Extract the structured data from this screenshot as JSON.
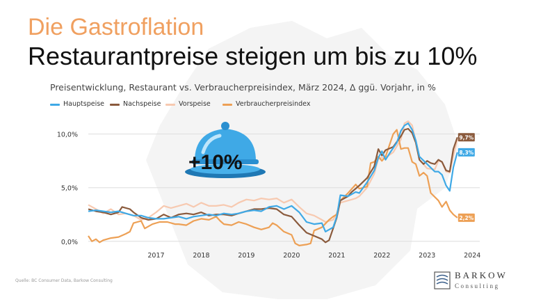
{
  "header": {
    "kicker": "Die Gastroflation",
    "headline": "Restaurantpreise steigen um bis zu 10%"
  },
  "colors": {
    "hauptspeise": "#3fa9e6",
    "nachspeise": "#8a5a3c",
    "vorspeise": "#f7c9b0",
    "vpi": "#eda055",
    "kicker": "#f0a060"
  },
  "badge": {
    "text": "+10%",
    "icon": "cloche-icon"
  },
  "source": "Quelle: BC Consumer Data, Barkow Consulting",
  "logo": {
    "name": "BARKOW",
    "sub": "Consulting"
  },
  "chart_data": {
    "type": "line",
    "title": "Preisentwicklung, Restaurant vs. Verbraucherpreisindex, März 2024, Δ ggü. Vorjahr, in %",
    "xlabel": "",
    "ylabel": "",
    "x_ticks": [
      "2017",
      "2018",
      "2019",
      "2020",
      "2021",
      "2022",
      "2023",
      "2024"
    ],
    "y_ticks": [
      "0,0%",
      "5,0%",
      "10,0%"
    ],
    "ylim": [
      -0.6,
      11.6
    ],
    "xlim": [
      2016.0,
      2024.25
    ],
    "grid": "horizontal",
    "legend_position": "top-left",
    "series": [
      {
        "name": "Hauptspeise",
        "color": "#3fa9e6",
        "end_label": "8,3%",
        "points": [
          [
            2016.0,
            2.8
          ],
          [
            2016.17,
            2.9
          ],
          [
            2016.33,
            2.8
          ],
          [
            2016.5,
            2.7
          ],
          [
            2016.67,
            2.8
          ],
          [
            2016.83,
            2.6
          ],
          [
            2017.0,
            2.4
          ],
          [
            2017.17,
            2.4
          ],
          [
            2017.33,
            2.2
          ],
          [
            2017.5,
            2.1
          ],
          [
            2017.67,
            2.1
          ],
          [
            2017.83,
            2.2
          ],
          [
            2018.0,
            2.3
          ],
          [
            2018.17,
            2.1
          ],
          [
            2018.33,
            2.3
          ],
          [
            2018.5,
            2.4
          ],
          [
            2018.67,
            2.5
          ],
          [
            2018.83,
            2.4
          ],
          [
            2019.0,
            2.6
          ],
          [
            2019.17,
            2.5
          ],
          [
            2019.33,
            2.6
          ],
          [
            2019.5,
            2.8
          ],
          [
            2019.67,
            2.9
          ],
          [
            2019.83,
            2.8
          ],
          [
            2020.0,
            3.2
          ],
          [
            2020.17,
            3.3
          ],
          [
            2020.33,
            3.0
          ],
          [
            2020.5,
            3.3
          ],
          [
            2020.67,
            2.7
          ],
          [
            2020.83,
            1.8
          ],
          [
            2021.0,
            1.6
          ],
          [
            2021.17,
            1.7
          ],
          [
            2021.25,
            0.9
          ],
          [
            2021.42,
            1.3
          ],
          [
            2021.5,
            2.3
          ],
          [
            2021.58,
            4.3
          ],
          [
            2021.75,
            4.2
          ],
          [
            2021.92,
            4.6
          ],
          [
            2022.0,
            4.5
          ],
          [
            2022.17,
            5.5
          ],
          [
            2022.33,
            6.6
          ],
          [
            2022.42,
            7.8
          ],
          [
            2022.5,
            8.4
          ],
          [
            2022.58,
            7.6
          ],
          [
            2022.67,
            8.2
          ],
          [
            2022.83,
            9.2
          ],
          [
            2022.92,
            10.3
          ],
          [
            2023.0,
            10.8
          ],
          [
            2023.08,
            11.0
          ],
          [
            2023.17,
            10.4
          ],
          [
            2023.25,
            9.4
          ],
          [
            2023.33,
            7.9
          ],
          [
            2023.5,
            7.2
          ],
          [
            2023.67,
            6.5
          ],
          [
            2023.75,
            6.5
          ],
          [
            2023.83,
            6.2
          ],
          [
            2023.92,
            5.2
          ],
          [
            2024.0,
            4.7
          ],
          [
            2024.08,
            6.9
          ],
          [
            2024.17,
            8.3
          ]
        ]
      },
      {
        "name": "Nachspeise",
        "color": "#8a5a3c",
        "end_label": "9,7%",
        "points": [
          [
            2016.0,
            3.0
          ],
          [
            2016.17,
            2.8
          ],
          [
            2016.33,
            2.7
          ],
          [
            2016.5,
            2.5
          ],
          [
            2016.67,
            2.7
          ],
          [
            2016.75,
            3.2
          ],
          [
            2016.92,
            3.0
          ],
          [
            2017.0,
            2.7
          ],
          [
            2017.17,
            2.2
          ],
          [
            2017.33,
            2.0
          ],
          [
            2017.5,
            2.1
          ],
          [
            2017.67,
            2.5
          ],
          [
            2017.83,
            2.2
          ],
          [
            2018.0,
            2.5
          ],
          [
            2018.17,
            2.6
          ],
          [
            2018.33,
            2.5
          ],
          [
            2018.5,
            2.7
          ],
          [
            2018.67,
            2.4
          ],
          [
            2018.83,
            2.5
          ],
          [
            2019.0,
            2.5
          ],
          [
            2019.17,
            2.4
          ],
          [
            2019.33,
            2.6
          ],
          [
            2019.5,
            2.8
          ],
          [
            2019.67,
            3.0
          ],
          [
            2019.83,
            3.0
          ],
          [
            2020.0,
            3.1
          ],
          [
            2020.17,
            3.0
          ],
          [
            2020.33,
            2.5
          ],
          [
            2020.5,
            2.3
          ],
          [
            2020.67,
            1.5
          ],
          [
            2020.83,
            0.8
          ],
          [
            2021.0,
            0.5
          ],
          [
            2021.17,
            0.2
          ],
          [
            2021.25,
            -0.1
          ],
          [
            2021.33,
            0.1
          ],
          [
            2021.42,
            1.2
          ],
          [
            2021.5,
            2.2
          ],
          [
            2021.58,
            3.8
          ],
          [
            2021.75,
            4.2
          ],
          [
            2021.83,
            4.6
          ],
          [
            2022.0,
            5.2
          ],
          [
            2022.17,
            5.9
          ],
          [
            2022.33,
            7.0
          ],
          [
            2022.42,
            8.6
          ],
          [
            2022.5,
            8.0
          ],
          [
            2022.58,
            8.5
          ],
          [
            2022.75,
            8.8
          ],
          [
            2022.92,
            9.8
          ],
          [
            2023.0,
            10.4
          ],
          [
            2023.08,
            10.5
          ],
          [
            2023.17,
            10.1
          ],
          [
            2023.25,
            9.2
          ],
          [
            2023.33,
            7.6
          ],
          [
            2023.42,
            7.2
          ],
          [
            2023.5,
            7.5
          ],
          [
            2023.58,
            7.3
          ],
          [
            2023.67,
            7.2
          ],
          [
            2023.75,
            7.6
          ],
          [
            2023.83,
            7.4
          ],
          [
            2023.92,
            6.6
          ],
          [
            2024.0,
            6.5
          ],
          [
            2024.08,
            8.6
          ],
          [
            2024.17,
            9.7
          ]
        ]
      },
      {
        "name": "Vorspeise",
        "color": "#f7c9b0",
        "end_label": "",
        "points": [
          [
            2016.0,
            3.4
          ],
          [
            2016.17,
            3.0
          ],
          [
            2016.33,
            2.6
          ],
          [
            2016.5,
            3.0
          ],
          [
            2016.67,
            2.5
          ],
          [
            2016.83,
            2.6
          ],
          [
            2017.0,
            2.4
          ],
          [
            2017.17,
            2.0
          ],
          [
            2017.33,
            2.2
          ],
          [
            2017.5,
            2.7
          ],
          [
            2017.67,
            3.3
          ],
          [
            2017.83,
            3.1
          ],
          [
            2018.0,
            3.3
          ],
          [
            2018.17,
            3.5
          ],
          [
            2018.33,
            3.2
          ],
          [
            2018.5,
            3.6
          ],
          [
            2018.67,
            3.3
          ],
          [
            2018.83,
            3.3
          ],
          [
            2019.0,
            3.4
          ],
          [
            2019.17,
            3.2
          ],
          [
            2019.33,
            3.6
          ],
          [
            2019.5,
            3.9
          ],
          [
            2019.67,
            3.8
          ],
          [
            2019.83,
            4.0
          ],
          [
            2020.0,
            3.9
          ],
          [
            2020.17,
            4.0
          ],
          [
            2020.33,
            3.6
          ],
          [
            2020.5,
            3.9
          ],
          [
            2020.67,
            3.2
          ],
          [
            2020.83,
            2.6
          ],
          [
            2021.0,
            2.4
          ],
          [
            2021.17,
            2.0
          ],
          [
            2021.25,
            1.8
          ],
          [
            2021.42,
            2.0
          ],
          [
            2021.5,
            2.6
          ],
          [
            2021.58,
            3.6
          ],
          [
            2021.75,
            3.8
          ],
          [
            2021.92,
            4.0
          ],
          [
            2022.0,
            4.2
          ],
          [
            2022.17,
            5.0
          ],
          [
            2022.33,
            6.3
          ],
          [
            2022.42,
            7.7
          ],
          [
            2022.5,
            7.8
          ],
          [
            2022.58,
            7.8
          ],
          [
            2022.75,
            8.3
          ],
          [
            2022.92,
            9.5
          ],
          [
            2023.0,
            11.0
          ],
          [
            2023.08,
            11.2
          ],
          [
            2023.17,
            10.8
          ],
          [
            2023.25,
            9.3
          ],
          [
            2023.33,
            7.6
          ],
          [
            2023.5,
            6.8
          ],
          [
            2023.67,
            6.7
          ],
          [
            2023.75,
            7.5
          ],
          [
            2023.83,
            7.4
          ],
          [
            2023.92,
            6.5
          ],
          [
            2024.0,
            6.4
          ],
          [
            2024.08,
            8.0
          ],
          [
            2024.17,
            9.5
          ]
        ]
      },
      {
        "name": "Verbraucherpreisindex",
        "color": "#eda055",
        "end_label": "2,2%",
        "points": [
          [
            2016.0,
            0.5
          ],
          [
            2016.08,
            0.0
          ],
          [
            2016.17,
            0.2
          ],
          [
            2016.25,
            -0.1
          ],
          [
            2016.33,
            0.1
          ],
          [
            2016.5,
            0.3
          ],
          [
            2016.67,
            0.4
          ],
          [
            2016.83,
            0.7
          ],
          [
            2016.92,
            0.9
          ],
          [
            2017.0,
            1.7
          ],
          [
            2017.17,
            1.9
          ],
          [
            2017.25,
            1.2
          ],
          [
            2017.42,
            1.6
          ],
          [
            2017.58,
            1.8
          ],
          [
            2017.75,
            1.8
          ],
          [
            2017.92,
            1.6
          ],
          [
            2018.0,
            1.6
          ],
          [
            2018.17,
            1.5
          ],
          [
            2018.33,
            1.9
          ],
          [
            2018.5,
            2.1
          ],
          [
            2018.67,
            2.0
          ],
          [
            2018.83,
            2.3
          ],
          [
            2018.92,
            1.9
          ],
          [
            2019.0,
            1.6
          ],
          [
            2019.17,
            1.5
          ],
          [
            2019.33,
            1.8
          ],
          [
            2019.5,
            1.6
          ],
          [
            2019.67,
            1.3
          ],
          [
            2019.83,
            1.1
          ],
          [
            2020.0,
            1.3
          ],
          [
            2020.08,
            1.7
          ],
          [
            2020.17,
            1.5
          ],
          [
            2020.33,
            0.9
          ],
          [
            2020.5,
            0.6
          ],
          [
            2020.58,
            -0.2
          ],
          [
            2020.67,
            -0.4
          ],
          [
            2020.83,
            -0.3
          ],
          [
            2020.92,
            -0.2
          ],
          [
            2021.0,
            1.0
          ],
          [
            2021.17,
            1.3
          ],
          [
            2021.33,
            2.0
          ],
          [
            2021.42,
            2.3
          ],
          [
            2021.5,
            2.5
          ],
          [
            2021.58,
            3.8
          ],
          [
            2021.75,
            4.5
          ],
          [
            2021.92,
            5.3
          ],
          [
            2022.0,
            4.9
          ],
          [
            2022.17,
            5.1
          ],
          [
            2022.25,
            7.3
          ],
          [
            2022.33,
            7.4
          ],
          [
            2022.42,
            7.9
          ],
          [
            2022.5,
            7.5
          ],
          [
            2022.58,
            7.9
          ],
          [
            2022.75,
            10.0
          ],
          [
            2022.83,
            10.4
          ],
          [
            2022.92,
            8.6
          ],
          [
            2023.0,
            8.7
          ],
          [
            2023.08,
            8.7
          ],
          [
            2023.17,
            7.4
          ],
          [
            2023.25,
            7.2
          ],
          [
            2023.33,
            6.1
          ],
          [
            2023.42,
            6.4
          ],
          [
            2023.5,
            6.1
          ],
          [
            2023.58,
            4.5
          ],
          [
            2023.75,
            3.8
          ],
          [
            2023.83,
            3.2
          ],
          [
            2023.92,
            3.7
          ],
          [
            2024.0,
            2.9
          ],
          [
            2024.08,
            2.5
          ],
          [
            2024.17,
            2.2
          ]
        ]
      }
    ]
  }
}
